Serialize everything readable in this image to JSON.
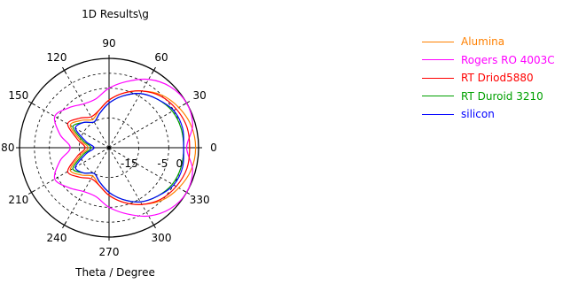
{
  "chart_data": {
    "type": "polar-line",
    "title": "1D Results\\g",
    "xlabel": "Theta / Degree",
    "angle_ticks": [
      0,
      30,
      60,
      90,
      120,
      150,
      180,
      210,
      240,
      270,
      300,
      330
    ],
    "radial_ticks": [
      -15,
      -5,
      0
    ],
    "radial_range": [
      -25,
      5
    ],
    "legend_position": "right",
    "series": [
      {
        "name": "Alumina",
        "color": "#ff8000",
        "theta": [
          0,
          15,
          30,
          45,
          60,
          75,
          90,
          105,
          120,
          135,
          150,
          165,
          180,
          195,
          210,
          225,
          240,
          255,
          270,
          285,
          300,
          315,
          330,
          345
        ],
        "values": [
          4,
          3.5,
          2,
          0,
          -3,
          -6,
          -9,
          -12,
          -14,
          -12,
          -10,
          -15,
          -18,
          -15,
          -10,
          -12,
          -14,
          -12,
          -9,
          -6,
          -3,
          0,
          2,
          3.5
        ]
      },
      {
        "name": "Rogers RO 4003C",
        "color": "#ff00ff",
        "theta": [
          0,
          15,
          30,
          45,
          60,
          75,
          90,
          105,
          120,
          135,
          150,
          165,
          180,
          195,
          210,
          225,
          240,
          255,
          270,
          285,
          300,
          315,
          330,
          345
        ],
        "values": [
          1,
          4,
          5,
          4,
          1.5,
          -2,
          -5,
          -8,
          -8,
          -6,
          -4,
          -8,
          -12,
          -8,
          -4,
          -6,
          -8,
          -8,
          -5,
          -2,
          1.5,
          4,
          5,
          4
        ]
      },
      {
        "name": "RT Driod5880",
        "color": "#ff0000",
        "theta": [
          0,
          15,
          30,
          45,
          60,
          75,
          90,
          105,
          120,
          135,
          150,
          165,
          180,
          195,
          210,
          225,
          240,
          255,
          270,
          285,
          300,
          315,
          330,
          345
        ],
        "values": [
          2,
          2,
          1,
          -0.5,
          -3,
          -6,
          -9,
          -12,
          -13,
          -11,
          -9,
          -14,
          -17,
          -14,
          -9,
          -11,
          -13,
          -12,
          -9,
          -6,
          -3,
          -0.5,
          1,
          2
        ]
      },
      {
        "name": "RT Duroid 3210",
        "color": "#00a000",
        "theta": [
          0,
          15,
          30,
          45,
          60,
          75,
          90,
          105,
          120,
          135,
          150,
          165,
          180,
          195,
          210,
          225,
          240,
          255,
          270,
          285,
          300,
          315,
          330,
          345
        ],
        "values": [
          0,
          0,
          -0.5,
          -2,
          -4,
          -7,
          -10,
          -13,
          -15,
          -13,
          -11,
          -16,
          -19,
          -16,
          -11,
          -13,
          -15,
          -13,
          -10,
          -7,
          -4,
          -2,
          -0.5,
          0
        ]
      },
      {
        "name": "silicon",
        "color": "#0000ff",
        "theta": [
          0,
          15,
          30,
          45,
          60,
          75,
          90,
          105,
          120,
          135,
          150,
          165,
          180,
          195,
          210,
          225,
          240,
          255,
          270,
          285,
          300,
          315,
          330,
          345
        ],
        "values": [
          0,
          0.5,
          0,
          -2,
          -4,
          -7,
          -10,
          -13,
          -15,
          -13,
          -12,
          -17,
          -20,
          -17,
          -12,
          -13,
          -15,
          -13,
          -10,
          -7,
          -4,
          -2,
          0,
          0.5
        ]
      }
    ]
  }
}
